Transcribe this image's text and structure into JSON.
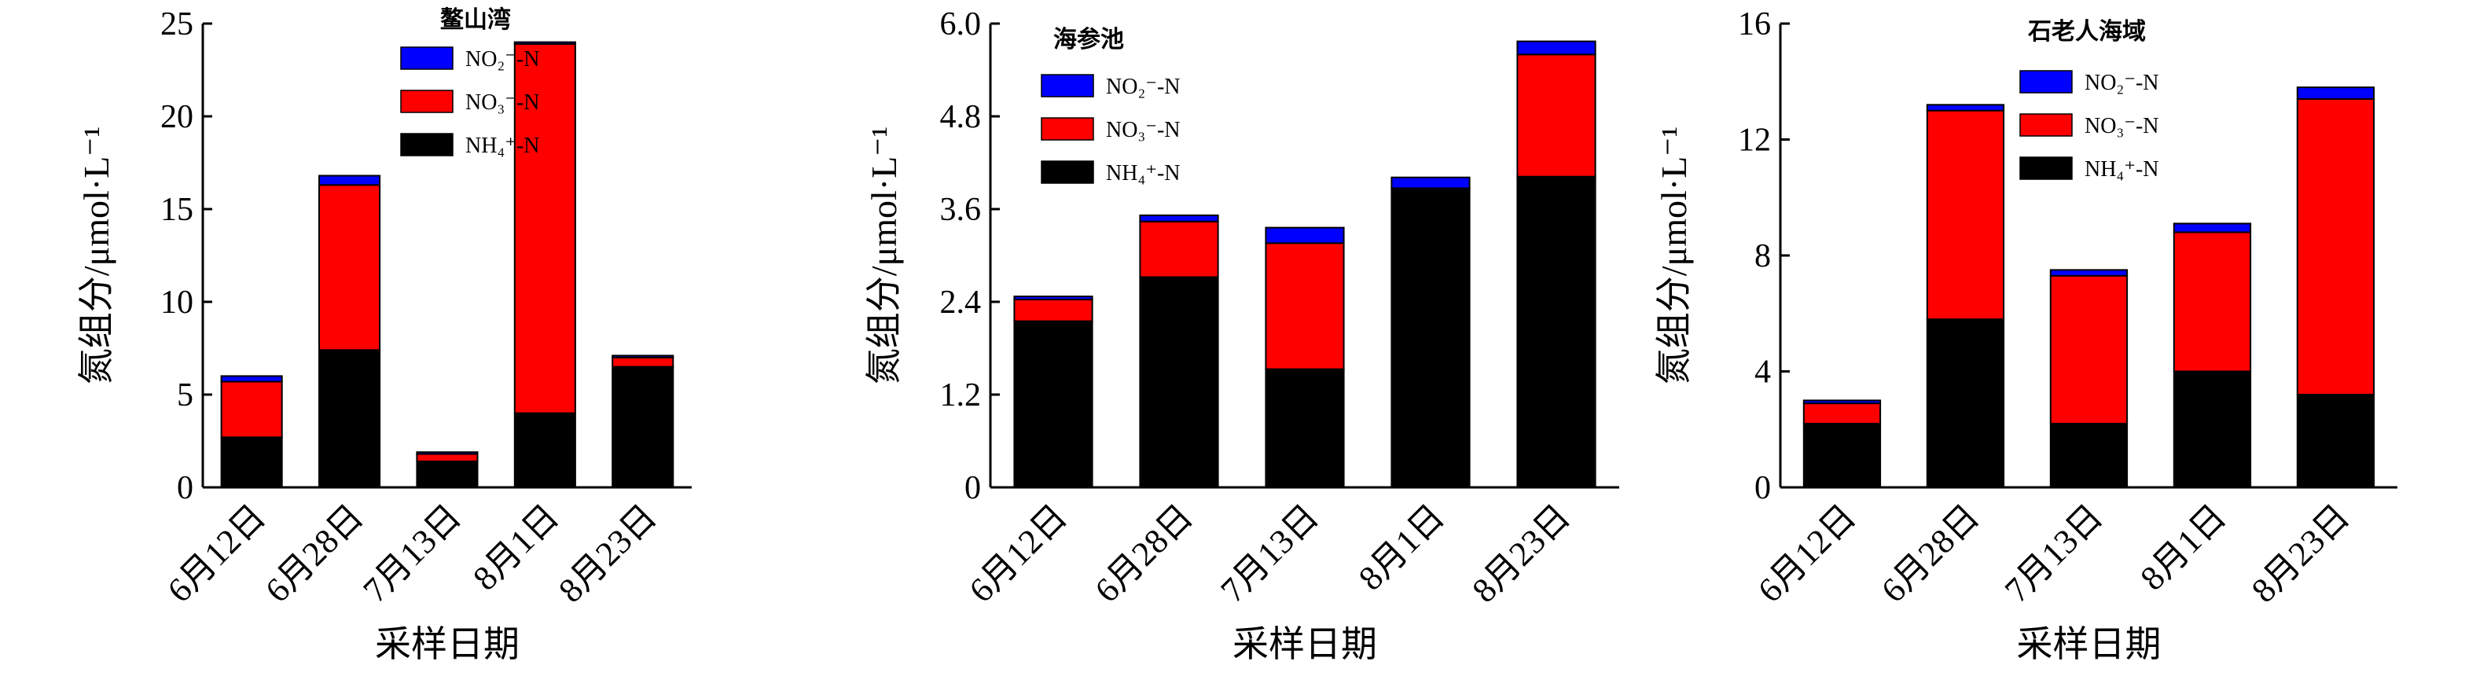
{
  "chart_data": [
    {
      "type": "bar",
      "stacked": true,
      "title": "鳌山湾",
      "xlabel": "采样日期",
      "ylabel": "氮组分/μmol·L⁻¹",
      "categories": [
        "6月12日",
        "6月28日",
        "7月13日",
        "8月1日",
        "8月23日"
      ],
      "ylim": [
        0,
        25
      ],
      "yticks": [
        "0",
        "5",
        "10",
        "15",
        "20",
        "25"
      ],
      "series": [
        {
          "name": "NH₄⁺-N",
          "color": "#000000",
          "values": [
            2.7,
            7.4,
            1.4,
            4.0,
            6.5
          ]
        },
        {
          "name": "NO₃⁻-N",
          "color": "#ff0000",
          "values": [
            3.0,
            8.9,
            0.4,
            19.9,
            0.5
          ]
        },
        {
          "name": "NO₂⁻-N",
          "color": "#0000ff",
          "values": [
            0.3,
            0.5,
            0.1,
            0.1,
            0.1
          ]
        }
      ],
      "legend_position": "top-center"
    },
    {
      "type": "bar",
      "stacked": true,
      "title": "海参池",
      "xlabel": "采样日期",
      "ylabel": "氮组分/μmol·L⁻¹",
      "categories": [
        "6月12日",
        "6月28日",
        "7月13日",
        "8月1日",
        "8月23日"
      ],
      "ylim": [
        0,
        6.0
      ],
      "yticks": [
        "0",
        "1.2",
        "2.4",
        "3.6",
        "4.8",
        "6.0"
      ],
      "series": [
        {
          "name": "NH₄⁺-N",
          "color": "#000000",
          "values": [
            2.15,
            2.72,
            1.53,
            3.87,
            4.02
          ]
        },
        {
          "name": "NO₃⁻-N",
          "color": "#ff0000",
          "values": [
            0.28,
            0.72,
            1.63,
            0.0,
            1.58
          ]
        },
        {
          "name": "NO₂⁻-N",
          "color": "#0000ff",
          "values": [
            0.04,
            0.08,
            0.2,
            0.14,
            0.17
          ]
        }
      ],
      "legend_position": "top-left"
    },
    {
      "type": "bar",
      "stacked": true,
      "title": "石老人海域",
      "xlabel": "采样日期",
      "ylabel": "氮组分/μmol·L⁻¹",
      "categories": [
        "6月12日",
        "6月28日",
        "7月13日",
        "8月1日",
        "8月23日"
      ],
      "ylim": [
        0,
        16
      ],
      "yticks": [
        "0",
        "4",
        "8",
        "12",
        "16"
      ],
      "series": [
        {
          "name": "NH₄⁺-N",
          "color": "#000000",
          "values": [
            2.2,
            5.8,
            2.2,
            4.0,
            3.2
          ]
        },
        {
          "name": "NO₃⁻-N",
          "color": "#ff0000",
          "values": [
            0.7,
            7.2,
            5.1,
            4.8,
            10.2
          ]
        },
        {
          "name": "NO₂⁻-N",
          "color": "#0000ff",
          "values": [
            0.1,
            0.2,
            0.2,
            0.3,
            0.4
          ]
        }
      ],
      "legend_position": "top-center"
    }
  ]
}
